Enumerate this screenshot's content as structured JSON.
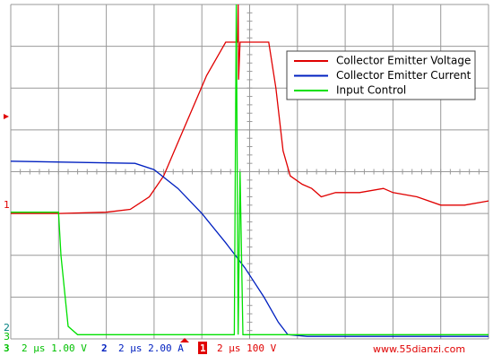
{
  "chart_data": {
    "type": "line",
    "xlim": [
      0,
      10
    ],
    "ylim": [
      0,
      8
    ],
    "grid": true,
    "series": [
      {
        "name": "Collector Emitter Voltage",
        "color": "#e00000",
        "x": [
          0,
          1,
          2,
          2.5,
          2.9,
          3.2,
          3.5,
          3.8,
          4.1,
          4.4,
          4.5,
          4.75,
          4.76,
          4.77,
          4.8,
          5.4,
          5.55,
          5.7,
          5.85,
          6.1,
          6.3,
          6.5,
          6.8,
          7.3,
          7.8,
          8.0,
          8.5,
          9.0,
          9.5,
          10
        ],
        "values": [
          3.0,
          3.0,
          3.03,
          3.1,
          3.4,
          3.9,
          4.7,
          5.5,
          6.3,
          6.9,
          7.1,
          7.1,
          8.0,
          6.2,
          7.1,
          7.1,
          6.0,
          4.5,
          3.9,
          3.7,
          3.6,
          3.4,
          3.5,
          3.5,
          3.6,
          3.5,
          3.4,
          3.2,
          3.2,
          3.3
        ]
      },
      {
        "name": "Collector Emitter Current",
        "color": "#0020c0",
        "x": [
          0,
          2.6,
          3.0,
          3.5,
          4.0,
          4.5,
          4.9,
          5.3,
          5.6,
          5.8,
          6.2,
          10
        ],
        "values": [
          4.25,
          4.2,
          4.05,
          3.6,
          3.0,
          2.3,
          1.7,
          1.0,
          0.4,
          0.1,
          0.06,
          0.06
        ]
      },
      {
        "name": "Input Control",
        "color": "#00e000",
        "x": [
          0,
          1.0,
          1.05,
          1.2,
          1.4,
          4.68,
          4.72,
          4.76,
          4.8,
          4.86,
          10
        ],
        "values": [
          3.03,
          3.03,
          2.0,
          0.3,
          0.1,
          0.1,
          8.0,
          0.1,
          4.0,
          0.1,
          0.1
        ]
      }
    ],
    "channel_markers": [
      "1",
      "2",
      "3"
    ],
    "footer": [
      {
        "channel": "3",
        "scale": "2 μs 1.00 V",
        "color": "#00c000"
      },
      {
        "channel": "2",
        "scale": "2 μs 2.00 A",
        "color": "#0020c0"
      },
      {
        "channel": "1",
        "scale": "2 μs 100 V",
        "color": "#e00000"
      }
    ],
    "watermark": "www.55dianzi.com"
  }
}
